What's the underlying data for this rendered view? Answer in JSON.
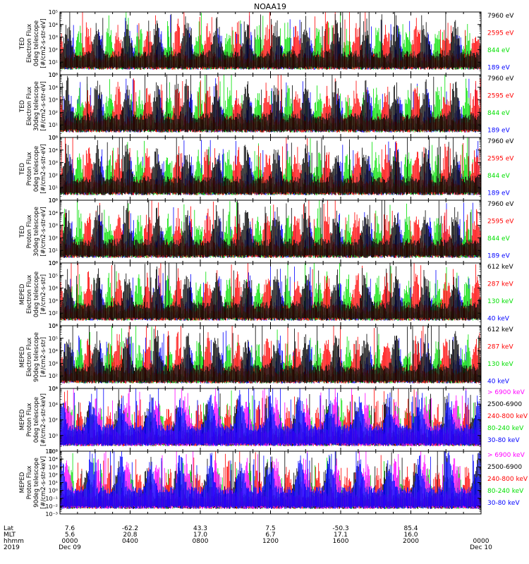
{
  "chart_data": {
    "type": "line",
    "title": "NOAA19",
    "colors": {
      "black": "#000000",
      "red": "#ff0000",
      "green": "#00e000",
      "blue": "#0000ff",
      "magenta": "#ff00ff"
    },
    "panels": [
      {
        "id": "ted-e-0",
        "ylabel": [
          "TED",
          "Electron Flux",
          "0deg telescope",
          "[#/cm2-s-str-eV]"
        ],
        "log_min": 0,
        "log_max": 5,
        "ticks": [
          "10⁰",
          "10¹",
          "10²",
          "10³",
          "10⁴",
          "10⁵"
        ],
        "legend": [
          {
            "text": "7960 eV",
            "color": "black"
          },
          {
            "text": "2595 eV",
            "color": "red"
          },
          {
            "text": "844 eV",
            "color": "green"
          },
          {
            "text": "189 eV",
            "color": "blue"
          }
        ]
      },
      {
        "id": "ted-e-90",
        "ylabel": [
          "TED",
          "Electron Flux",
          "30deg telescope",
          "[#/cm2-s-str-eV]"
        ],
        "log_min": 0,
        "log_max": 5,
        "ticks": [
          "10⁰",
          "10¹",
          "10²",
          "10³",
          "10⁴",
          "10⁵"
        ],
        "legend": [
          {
            "text": "7960 eV",
            "color": "black"
          },
          {
            "text": "2595 eV",
            "color": "red"
          },
          {
            "text": "844 eV",
            "color": "green"
          },
          {
            "text": "189 eV",
            "color": "blue"
          }
        ]
      },
      {
        "id": "ted-p-0",
        "ylabel": [
          "TED",
          "Proton Flux",
          "0deg telescope",
          "[#/cm2-s-str-eV]"
        ],
        "log_min": 0,
        "log_max": 5,
        "ticks": [
          "10⁰",
          "10¹",
          "10²",
          "10³",
          "10⁴",
          "10⁵"
        ],
        "legend": [
          {
            "text": "7960 eV",
            "color": "black"
          },
          {
            "text": "2595 eV",
            "color": "red"
          },
          {
            "text": "844 eV",
            "color": "green"
          },
          {
            "text": "189 eV",
            "color": "blue"
          }
        ]
      },
      {
        "id": "ted-p-90",
        "ylabel": [
          "TED",
          "Proton Flux",
          "30deg telescope",
          "[#/cm2-s-str-eV]"
        ],
        "log_min": 0,
        "log_max": 5,
        "ticks": [
          "10⁰",
          "10¹",
          "10²",
          "10³",
          "10⁴",
          "10⁵"
        ],
        "legend": [
          {
            "text": "7960 eV",
            "color": "black"
          },
          {
            "text": "2595 eV",
            "color": "red"
          },
          {
            "text": "844 eV",
            "color": "green"
          },
          {
            "text": "189 eV",
            "color": "blue"
          }
        ]
      },
      {
        "id": "meped-e-0",
        "ylabel": [
          "MEPED",
          "Electron Flux",
          "0deg telescope",
          "[#/cm2-s-str]"
        ],
        "log_min": 1,
        "log_max": 6,
        "ticks": [
          "10¹",
          "10²",
          "10³",
          "10⁴",
          "10⁵",
          "10⁶"
        ],
        "legend": [
          {
            "text": "612 keV",
            "color": "black"
          },
          {
            "text": "287 keV",
            "color": "red"
          },
          {
            "text": "130 keV",
            "color": "green"
          },
          {
            "text": "40 keV",
            "color": "blue"
          }
        ]
      },
      {
        "id": "meped-e-90",
        "ylabel": [
          "MEPED",
          "Electron Flux",
          "90deg telescope",
          "[#/cm2-s-str]"
        ],
        "log_min": 1,
        "log_max": 6,
        "ticks": [
          "10¹",
          "10²",
          "10³",
          "10⁴",
          "10⁵",
          "10⁶"
        ],
        "legend": [
          {
            "text": "612 keV",
            "color": "black"
          },
          {
            "text": "287 keV",
            "color": "red"
          },
          {
            "text": "130 keV",
            "color": "green"
          },
          {
            "text": "40 keV",
            "color": "blue"
          }
        ]
      },
      {
        "id": "meped-p-0",
        "ylabel": [
          "MEPED",
          "Proton Flux",
          "0deg telescope",
          "[#/cm2-s-str-keV]"
        ],
        "log_min": -2,
        "log_max": 6,
        "ticks": [
          "10⁻²",
          "10⁰",
          "10²",
          "10⁴",
          "10⁶"
        ],
        "legend": [
          {
            "text": "> 6900 keV",
            "color": "magenta"
          },
          {
            "text": "2500-6900",
            "color": "black"
          },
          {
            "text": "240-800 keV",
            "color": "red"
          },
          {
            "text": "80-240 keV",
            "color": "green"
          },
          {
            "text": "30-80 keV",
            "color": "blue"
          }
        ]
      },
      {
        "id": "meped-p-90",
        "ylabel": [
          "MEPED",
          "Proton Flux",
          "90deg telescope",
          "[#/cm2-s-str-keV]"
        ],
        "log_min": -3,
        "log_max": 5,
        "ticks": [
          "10⁻³",
          "10⁻²",
          "10⁻¹",
          "10⁰",
          "10¹",
          "10²",
          "10³",
          "10⁴",
          "10⁵"
        ],
        "legend": [
          {
            "text": "> 6900 keV",
            "color": "magenta"
          },
          {
            "text": "2500-6900",
            "color": "black"
          },
          {
            "text": "240-800 keV",
            "color": "red"
          },
          {
            "text": "80-240 keV",
            "color": "green"
          },
          {
            "text": "30-80 keV",
            "color": "blue"
          }
        ]
      }
    ],
    "x_axis": {
      "row_labels": [
        "Lat",
        "MLT",
        "hhmm",
        "2019"
      ],
      "hours": [
        0,
        4,
        8,
        12,
        16,
        20,
        24
      ],
      "lat": [
        "7.6",
        "-62.2",
        "43.3",
        "7.5",
        "-50.3",
        "85.4",
        ""
      ],
      "mlt": [
        "5.6",
        "20.8",
        "17.0",
        "6.7",
        "17.1",
        "16.0",
        ""
      ],
      "hhmm": [
        "0000",
        "0400",
        "0800",
        "1200",
        "1600",
        "2000",
        "0000"
      ],
      "date": [
        "Dec 09",
        "",
        "",
        "",
        "",
        "",
        "Dec 10"
      ]
    }
  }
}
